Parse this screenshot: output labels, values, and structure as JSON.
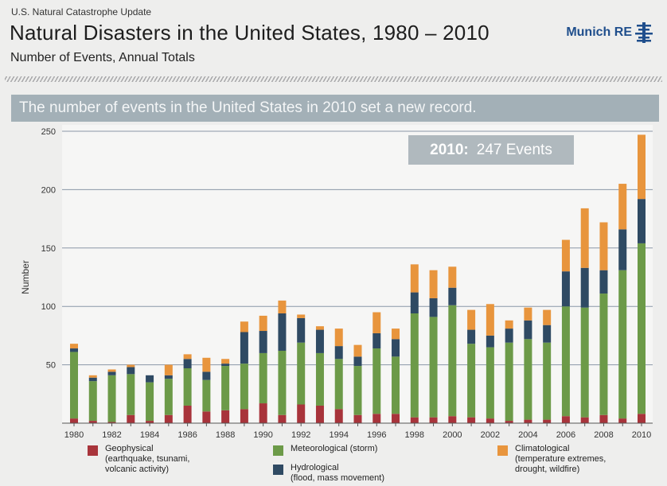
{
  "header": {
    "top_label": "U.S. Natural Catastrophe Update",
    "title": "Natural Disasters in the United States, 1980 – 2010",
    "subtitle": "Number of Events, Annual Totals",
    "logo_text": "Munich RE",
    "banner": "The number of events in the United States in 2010 set a new record.",
    "callout_year": "2010:",
    "callout_value": "247 Events"
  },
  "legend": {
    "geophysical": {
      "label": "Geophysical",
      "desc1": "(earthquake, tsunami,",
      "desc2": "volcanic activity)"
    },
    "meteorological": {
      "label": "Meteorological (storm)"
    },
    "hydrological": {
      "label": "Hydrological",
      "desc1": "(flood, mass movement)"
    },
    "climatological": {
      "label": "Climatological",
      "desc1": "(temperature extremes,",
      "desc2": "drought, wildfire)"
    }
  },
  "colors": {
    "geophysical": "#a8343b",
    "meteorological": "#6c9a48",
    "hydrological": "#2f4a63",
    "climatological": "#e8953d",
    "logo": "#1f4e8c"
  },
  "chart_data": {
    "type": "bar",
    "stacked": true,
    "ylabel": "Number",
    "xlabel": "",
    "ylim": [
      0,
      250
    ],
    "yticks": [
      "50",
      "100",
      "150",
      "200",
      "250"
    ],
    "xticks": [
      "1980",
      "1982",
      "1984",
      "1986",
      "1988",
      "1990",
      "1992",
      "1994",
      "1996",
      "1998",
      "2000",
      "2002",
      "2004",
      "2006",
      "2008",
      "2010"
    ],
    "categories": [
      "1980",
      "1981",
      "1982",
      "1983",
      "1984",
      "1985",
      "1986",
      "1987",
      "1988",
      "1989",
      "1990",
      "1991",
      "1992",
      "1993",
      "1994",
      "1995",
      "1996",
      "1997",
      "1998",
      "1999",
      "2000",
      "2001",
      "2002",
      "2003",
      "2004",
      "2005",
      "2006",
      "2007",
      "2008",
      "2009",
      "2010"
    ],
    "series": [
      {
        "name": "Geophysical",
        "values": [
          4,
          2,
          1,
          7,
          2,
          7,
          15,
          10,
          11,
          12,
          17,
          7,
          16,
          15,
          12,
          7,
          8,
          8,
          5,
          5,
          6,
          5,
          4,
          2,
          3,
          3,
          6,
          5,
          7,
          4,
          8
        ]
      },
      {
        "name": "Meteorological (storm)",
        "values": [
          57,
          34,
          40,
          35,
          33,
          31,
          32,
          27,
          38,
          39,
          43,
          55,
          53,
          45,
          43,
          42,
          56,
          49,
          89,
          86,
          95,
          63,
          61,
          67,
          69,
          66,
          94,
          94,
          104,
          127,
          146
        ]
      },
      {
        "name": "Hydrological",
        "values": [
          3,
          3,
          3,
          6,
          6,
          3,
          8,
          7,
          2,
          27,
          19,
          32,
          21,
          20,
          11,
          8,
          13,
          15,
          18,
          16,
          15,
          12,
          10,
          12,
          16,
          15,
          30,
          34,
          20,
          35,
          38
        ]
      },
      {
        "name": "Climatological",
        "values": [
          4,
          2,
          2,
          2,
          0,
          9,
          4,
          12,
          4,
          9,
          13,
          11,
          3,
          3,
          15,
          10,
          18,
          9,
          24,
          24,
          18,
          17,
          27,
          7,
          11,
          13,
          27,
          51,
          41,
          39,
          55
        ]
      }
    ]
  }
}
